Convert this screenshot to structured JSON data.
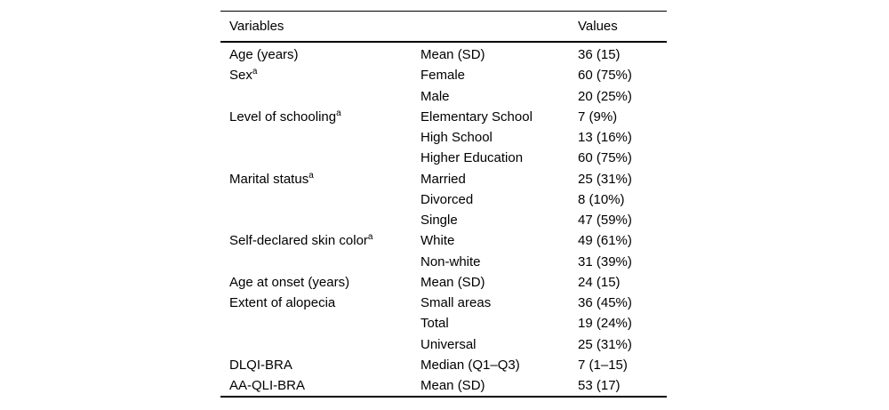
{
  "table": {
    "headers": {
      "variables": "Variables",
      "values": "Values"
    },
    "rows": [
      {
        "variable": "Age (years)",
        "sup": "",
        "category": "Mean (SD)",
        "value": "36 (15)"
      },
      {
        "variable": "Sex",
        "sup": "a",
        "category": "Female",
        "value": "60 (75%)"
      },
      {
        "variable": "",
        "sup": "",
        "category": "Male",
        "value": "20 (25%)"
      },
      {
        "variable": "Level of schooling",
        "sup": "a",
        "category": "Elementary School",
        "value": "7 (9%)"
      },
      {
        "variable": "",
        "sup": "",
        "category": "High School",
        "value": "13 (16%)"
      },
      {
        "variable": "",
        "sup": "",
        "category": "Higher Education",
        "value": "60 (75%)"
      },
      {
        "variable": "Marital status",
        "sup": "a",
        "category": "Married",
        "value": "25 (31%)"
      },
      {
        "variable": "",
        "sup": "",
        "category": "Divorced",
        "value": "8 (10%)"
      },
      {
        "variable": "",
        "sup": "",
        "category": "Single",
        "value": "47 (59%)"
      },
      {
        "variable": "Self-declared skin color",
        "sup": "a",
        "category": "White",
        "value": "49 (61%)"
      },
      {
        "variable": "",
        "sup": "",
        "category": "Non-white",
        "value": "31 (39%)"
      },
      {
        "variable": "Age at onset (years)",
        "sup": "",
        "category": "Mean (SD)",
        "value": "24 (15)"
      },
      {
        "variable": "Extent of alopecia",
        "sup": "",
        "category": "Small areas",
        "value": "36 (45%)"
      },
      {
        "variable": "",
        "sup": "",
        "category": "Total",
        "value": "19 (24%)"
      },
      {
        "variable": "",
        "sup": "",
        "category": "Universal",
        "value": "25 (31%)"
      },
      {
        "variable": "DLQI-BRA",
        "sup": "",
        "category": "Median (Q1–Q3)",
        "value": "7 (1–15)"
      },
      {
        "variable": "AA-QLI-BRA",
        "sup": "",
        "category": "Mean (SD)",
        "value": "53 (17)"
      }
    ]
  },
  "colors": {
    "text": "#000000",
    "background": "#ffffff",
    "rule": "#000000"
  }
}
